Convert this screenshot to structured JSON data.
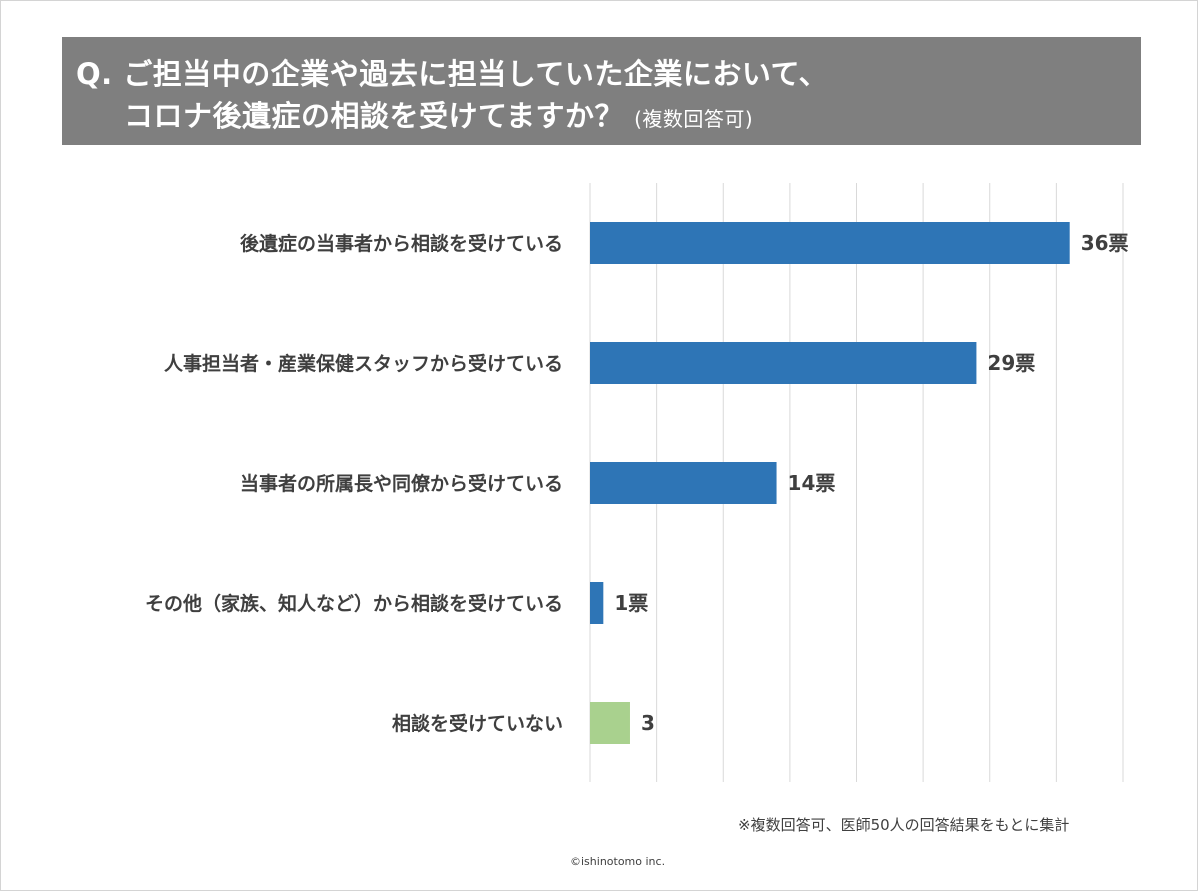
{
  "header": {
    "line1": "Q. ご担当中の企業や過去に担当していた企業において、",
    "line2": "コロナ後遺症の相談を受けてますか？",
    "note": "(複数回答可)"
  },
  "chart_data": {
    "type": "bar",
    "orientation": "horizontal",
    "title": "",
    "xlabel": "",
    "ylabel": "",
    "xlim": [
      0,
      40
    ],
    "grid": true,
    "categories": [
      "後遺症の当事者から相談を受けている",
      "人事担当者・産業保健スタッフから受けている",
      "当事者の所属長や同僚から受けている",
      "その他（家族、知人など）から相談を受けている",
      "相談を受けていない"
    ],
    "values": [
      36,
      29,
      14,
      1,
      3
    ],
    "data_labels": [
      "36票",
      "29票",
      "14票",
      "1票",
      "3"
    ],
    "colors": [
      "#2e75b6",
      "#2e75b6",
      "#2e75b6",
      "#2e75b6",
      "#a9d18e"
    ]
  },
  "footer": {
    "note": "※複数回答可、医師50人の回答結果をもとに集計",
    "copyright": "©ishinotomo inc."
  }
}
